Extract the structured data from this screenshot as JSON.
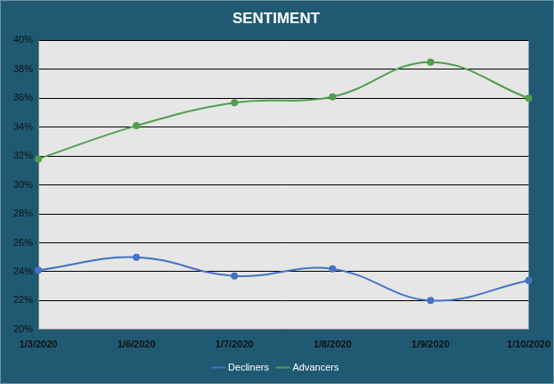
{
  "chart_data": {
    "type": "line",
    "title": "SENTIMENT",
    "categories": [
      "1/3/2020",
      "1/6/2020",
      "1/7/2020",
      "1/8/2020",
      "1/9/2020",
      "1/10/2020"
    ],
    "series": [
      {
        "name": "Decliners",
        "color": "#4472c4",
        "values": [
          24.1,
          25.0,
          23.7,
          24.2,
          22.0,
          23.4
        ]
      },
      {
        "name": "Advancers",
        "color": "#4e9f4e",
        "values": [
          31.8,
          34.1,
          35.7,
          36.1,
          38.5,
          36.0
        ]
      }
    ],
    "ylim": [
      20,
      40
    ],
    "yticks": [
      {
        "value": 20,
        "label": "20%"
      },
      {
        "value": 22,
        "label": "22%"
      },
      {
        "value": 24,
        "label": "24%"
      },
      {
        "value": 26,
        "label": "26%"
      },
      {
        "value": 28,
        "label": "28%"
      },
      {
        "value": 30,
        "label": "30%"
      },
      {
        "value": 32,
        "label": "32%"
      },
      {
        "value": 34,
        "label": "34%"
      },
      {
        "value": 36,
        "label": "36%"
      },
      {
        "value": 38,
        "label": "38%"
      },
      {
        "value": 40,
        "label": "40%"
      }
    ],
    "grid": true,
    "legend": "bottom",
    "marker": "circle"
  }
}
